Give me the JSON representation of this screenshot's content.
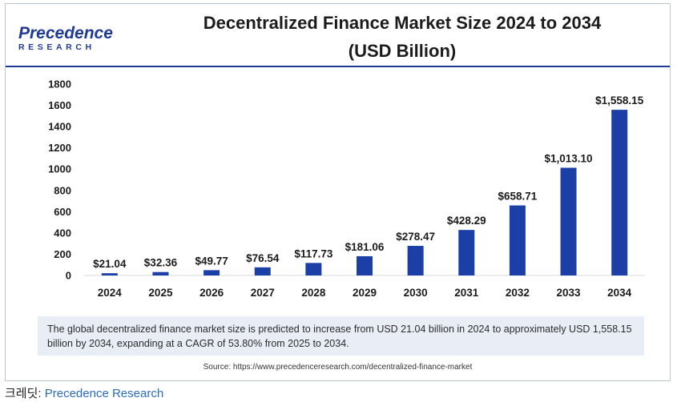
{
  "logo": {
    "word": "Precedence",
    "sub": "RESEARCH"
  },
  "title_line1": "Decentralized Finance Market Size 2024 to 2034",
  "title_line2": "(USD Billion)",
  "chart_data": {
    "type": "bar",
    "title": "Decentralized Finance Market Size 2024 to 2034 (USD Billion)",
    "categories": [
      "2024",
      "2025",
      "2026",
      "2027",
      "2028",
      "2029",
      "2030",
      "2031",
      "2032",
      "2033",
      "2034"
    ],
    "values": [
      21.04,
      32.36,
      49.77,
      76.54,
      117.73,
      181.06,
      278.47,
      428.29,
      658.71,
      1013.1,
      1558.15
    ],
    "data_labels": [
      "$21.04",
      "$32.36",
      "$49.77",
      "$76.54",
      "$117.73",
      "$181.06",
      "$278.47",
      "$428.29",
      "$658.71",
      "$1,013.10",
      "$1,558.15"
    ],
    "y_ticks": [
      0,
      200,
      400,
      600,
      800,
      1000,
      1200,
      1400,
      1600,
      1800
    ],
    "ylim": [
      0,
      1800
    ],
    "xlabel": "",
    "ylabel": "",
    "bar_color": "#1b3fa6",
    "grid": false
  },
  "note": "The global decentralized finance market size is predicted to increase from USD 21.04 billion in 2024 to approximately USD 1,558.15 billion by 2034, expanding at a CAGR of 53.80% from 2025 to 2034.",
  "source": "Source: https://www.precedenceresearch.com/decentralized-finance-market",
  "credit": {
    "prefix": "크레딧: ",
    "link": "Precedence Research"
  },
  "colors": {
    "brand": "#1f3a93",
    "note_bg": "#e9edf5"
  }
}
